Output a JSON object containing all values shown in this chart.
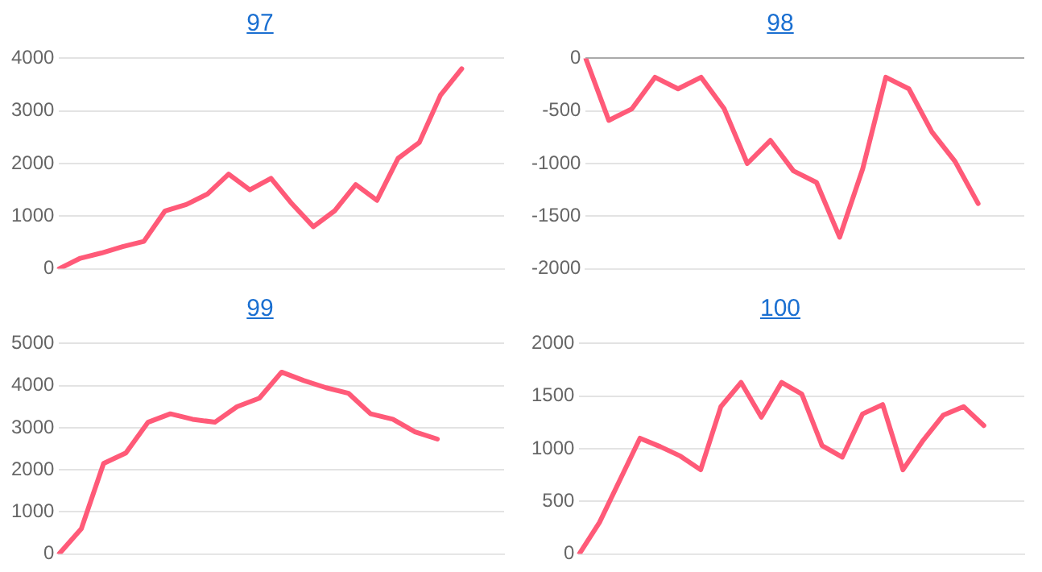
{
  "chart_data": [
    {
      "type": "line",
      "title": "97",
      "categories": [
        null,
        null,
        null,
        null,
        null,
        null,
        null,
        null,
        null,
        null,
        null,
        null,
        null,
        null,
        null,
        null,
        null,
        null,
        null,
        null,
        null,
        null
      ],
      "values": [
        0,
        200,
        300,
        420,
        520,
        1100,
        1220,
        1420,
        1800,
        1500,
        1720,
        1230,
        800,
        1100,
        1600,
        1300,
        2100,
        2400,
        3300,
        3800,
        null,
        null
      ],
      "color": "#ff5a78",
      "ylim": [
        0,
        4000
      ],
      "yticks": [
        0,
        1000,
        2000,
        3000,
        4000
      ],
      "grid": "y",
      "tick_labels": "y"
    },
    {
      "type": "line",
      "title": "98",
      "categories": [
        null,
        null,
        null,
        null,
        null,
        null,
        null,
        null,
        null,
        null,
        null,
        null,
        null,
        null,
        null,
        null,
        null,
        null,
        null,
        null
      ],
      "values": [
        0,
        -590,
        -480,
        -180,
        -290,
        -180,
        -480,
        -1000,
        -780,
        -1070,
        -1180,
        -1700,
        -1050,
        -180,
        -290,
        -700,
        -980,
        -1380,
        null,
        null
      ],
      "color": "#ff5a78",
      "ylim": [
        -2000,
        0
      ],
      "yticks": [
        -2000,
        -1500,
        -1000,
        -500,
        0
      ],
      "grid": "y",
      "tick_labels": "y"
    },
    {
      "type": "line",
      "title": "99",
      "categories": [
        null,
        null,
        null,
        null,
        null,
        null,
        null,
        null,
        null,
        null,
        null,
        null,
        null,
        null,
        null,
        null,
        null,
        null,
        null,
        null,
        null
      ],
      "values": [
        0,
        600,
        2150,
        2400,
        3130,
        3330,
        3200,
        3130,
        3500,
        3700,
        4320,
        4120,
        3950,
        3820,
        3330,
        3200,
        2900,
        2730,
        null,
        null,
        null
      ],
      "color": "#ff5a78",
      "ylim": [
        0,
        5000
      ],
      "yticks": [
        0,
        1000,
        2000,
        3000,
        4000,
        5000
      ],
      "grid": "y",
      "tick_labels": "y"
    },
    {
      "type": "line",
      "title": "100",
      "categories": [
        null,
        null,
        null,
        null,
        null,
        null,
        null,
        null,
        null,
        null,
        null,
        null,
        null,
        null,
        null,
        null,
        null,
        null,
        null,
        null,
        null,
        null,
        null
      ],
      "values": [
        0,
        300,
        700,
        1100,
        1020,
        930,
        800,
        1400,
        1630,
        1300,
        1630,
        1520,
        1030,
        920,
        1330,
        1420,
        800,
        1080,
        1320,
        1400,
        1220,
        null,
        null
      ],
      "color": "#ff5a78",
      "ylim": [
        0,
        2000
      ],
      "yticks": [
        0,
        500,
        1000,
        1500,
        2000
      ],
      "grid": "y",
      "tick_labels": "y"
    }
  ]
}
